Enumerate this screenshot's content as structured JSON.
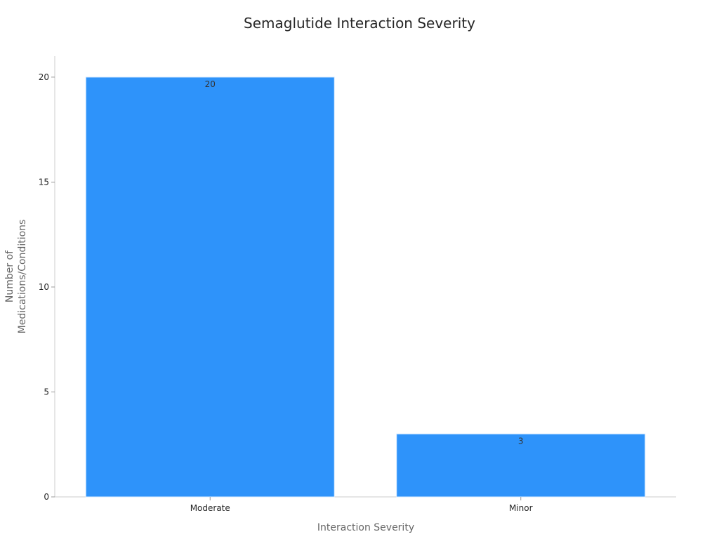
{
  "chart_data": {
    "type": "bar",
    "title": "Semaglutide Interaction Severity",
    "xlabel": "Interaction Severity",
    "ylabel_lines": [
      "Number of",
      "Medications/Conditions"
    ],
    "categories": [
      "Moderate",
      "Minor"
    ],
    "values": [
      20,
      3
    ],
    "data_labels": [
      "20",
      "3"
    ],
    "ylim": [
      0,
      21
    ],
    "yticks": [
      0,
      5,
      10,
      15,
      20
    ],
    "ytick_labels": [
      "0",
      "5",
      "10",
      "15",
      "20"
    ],
    "bar_color": "#2e93fa",
    "grid": false,
    "legend": "none"
  }
}
